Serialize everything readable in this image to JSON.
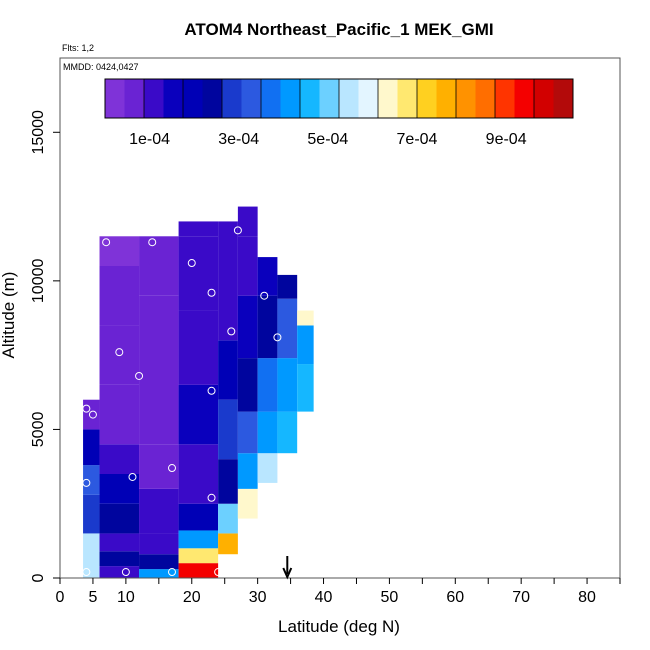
{
  "chart_data": {
    "type": "heatmap",
    "title": "ATOM4 Northeast_Pacific_1 MEK_GMI",
    "annotations": {
      "flights": "Flts: 1,2",
      "dates": "MMDD: 0424,0427"
    },
    "xlabel": "Latitude (deg N)",
    "ylabel": "Altitude (m)",
    "xlim": [
      0,
      85
    ],
    "ylim": [
      0,
      17500
    ],
    "x_ticks": [
      0,
      5,
      10,
      20,
      30,
      40,
      50,
      60,
      70,
      80
    ],
    "y_ticks": [
      0,
      5000,
      10000,
      15000
    ],
    "x_tick_labels": [
      "0",
      "5",
      "10",
      "20",
      "30",
      "40",
      "50",
      "60",
      "70",
      "80"
    ],
    "y_tick_labels": [
      "0",
      "5000",
      "10000",
      "15000"
    ],
    "marker_latitude": 34.5,
    "colorbar": {
      "range": [
        0,
        0.00105
      ],
      "tick_values": [
        0.0001,
        0.0003,
        0.0005,
        0.0007,
        0.0009
      ],
      "tick_labels": [
        "1e-04",
        "3e-04",
        "5e-04",
        "7e-04",
        "9e-04"
      ],
      "colors": [
        "#7f33d8",
        "#6a23d3",
        "#3a0ac8",
        "#0a00bd",
        "#0000b6",
        "#00059e",
        "#1a3acc",
        "#2c59e0",
        "#1170f2",
        "#0099ff",
        "#15b7ff",
        "#6cd0ff",
        "#b9e6ff",
        "#e3f5ff",
        "#fff8cc",
        "#ffe870",
        "#ffd020",
        "#ffb000",
        "#ff9200",
        "#ff6e00",
        "#ff3400",
        "#f40000",
        "#d20000",
        "#b30a0a"
      ]
    },
    "data_columns": [
      {
        "lat0": 3.5,
        "lat1": 6,
        "rows": [
          [
            0,
            1500,
            0.00055
          ],
          [
            1500,
            2800,
            0.0003
          ],
          [
            2800,
            3800,
            0.00033
          ],
          [
            3800,
            5000,
            0.00018
          ],
          [
            5000,
            6000,
            8e-05
          ]
        ]
      },
      {
        "lat0": 6,
        "lat1": 12,
        "rows": [
          [
            0,
            400,
            0.0001
          ],
          [
            400,
            900,
            0.00022
          ],
          [
            900,
            1500,
            0.0001
          ],
          [
            1500,
            2500,
            0.00025
          ],
          [
            2500,
            3500,
            0.00018
          ],
          [
            3500,
            4500,
            0.00012
          ],
          [
            4500,
            6500,
            8e-05
          ],
          [
            6500,
            8500,
            5e-05
          ],
          [
            8500,
            10500,
            6e-05
          ],
          [
            10500,
            11500,
            4e-05
          ]
        ]
      },
      {
        "lat0": 12,
        "lat1": 18,
        "rows": [
          [
            0,
            300,
            0.00042
          ],
          [
            300,
            800,
            0.00025
          ],
          [
            800,
            1500,
            0.00012
          ],
          [
            1500,
            3000,
            9e-05
          ],
          [
            3000,
            4500,
            8e-05
          ],
          [
            4500,
            7000,
            8e-05
          ],
          [
            7000,
            9500,
            7e-05
          ],
          [
            9500,
            11500,
            5e-05
          ]
        ]
      },
      {
        "lat0": 18,
        "lat1": 24,
        "rows": [
          [
            0,
            500,
            0.00095
          ],
          [
            500,
            1000,
            0.00068
          ],
          [
            1000,
            1600,
            0.0004
          ],
          [
            1600,
            2500,
            0.00018
          ],
          [
            2500,
            4500,
            0.0001
          ],
          [
            4500,
            6500,
            0.00014
          ],
          [
            6500,
            9000,
            0.0001
          ],
          [
            9000,
            11500,
            9e-05
          ],
          [
            11500,
            12000,
            0.0001
          ]
        ]
      },
      {
        "lat0": 24,
        "lat1": 27,
        "rows": [
          [
            800,
            1500,
            0.00078
          ],
          [
            1500,
            2500,
            0.0005
          ],
          [
            2500,
            4000,
            0.00022
          ],
          [
            4000,
            6000,
            0.00028
          ],
          [
            6000,
            8000,
            0.00018
          ],
          [
            8000,
            10500,
            0.0001
          ],
          [
            10500,
            12000,
            0.00011
          ]
        ]
      },
      {
        "lat0": 27,
        "lat1": 30,
        "rows": [
          [
            2000,
            3000,
            0.00062
          ],
          [
            3000,
            4200,
            0.0004
          ],
          [
            4200,
            5600,
            0.00033
          ],
          [
            5600,
            7400,
            0.00026
          ],
          [
            7400,
            9500,
            0.00015
          ],
          [
            9500,
            11500,
            0.00012
          ],
          [
            11500,
            12500,
            9e-05
          ]
        ]
      },
      {
        "lat0": 30,
        "lat1": 33,
        "rows": [
          [
            3200,
            4200,
            0.00056
          ],
          [
            4200,
            5600,
            0.00043
          ],
          [
            5600,
            7400,
            0.00035
          ],
          [
            7400,
            9500,
            0.00022
          ],
          [
            9500,
            10800,
            0.00015
          ]
        ]
      },
      {
        "lat0": 33,
        "lat1": 36,
        "rows": [
          [
            4200,
            5600,
            0.00048
          ],
          [
            5600,
            7400,
            0.00042
          ],
          [
            7400,
            9400,
            0.00033
          ],
          [
            9400,
            10200,
            0.00022
          ]
        ]
      },
      {
        "lat0": 36,
        "lat1": 38.5,
        "rows": [
          [
            5600,
            7200,
            0.00046
          ],
          [
            7200,
            8500,
            0.0004
          ],
          [
            8500,
            9000,
            0.00062
          ]
        ]
      }
    ],
    "sample_points": [
      [
        4,
        200
      ],
      [
        4,
        3200
      ],
      [
        4,
        5700
      ],
      [
        5,
        5500
      ],
      [
        5,
        9900
      ],
      [
        7,
        11300
      ],
      [
        9,
        7600
      ],
      [
        10,
        200
      ],
      [
        11,
        3400
      ],
      [
        12,
        6800
      ],
      [
        14,
        11300
      ],
      [
        17,
        200
      ],
      [
        17,
        3700
      ],
      [
        20,
        10600
      ],
      [
        23,
        6300
      ],
      [
        23,
        9600
      ],
      [
        23,
        2700
      ],
      [
        24,
        200
      ],
      [
        26,
        8300
      ],
      [
        27,
        11700
      ],
      [
        31,
        9500
      ],
      [
        33,
        8100
      ]
    ]
  }
}
